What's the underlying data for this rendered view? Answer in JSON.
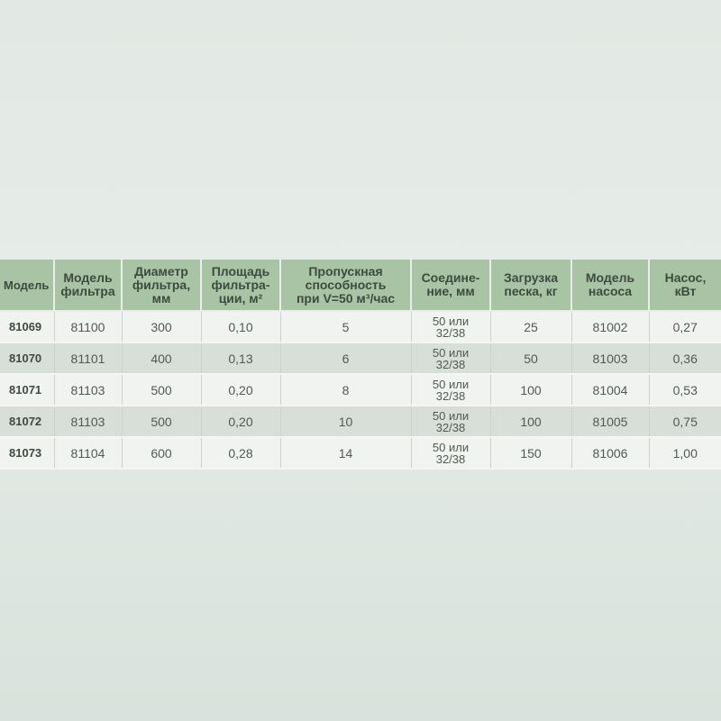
{
  "table": {
    "headers": [
      {
        "line1": "Модель",
        "line2": ""
      },
      {
        "line1": "Модель",
        "line2": "фильтра"
      },
      {
        "line1": "Диаметр",
        "line2": "фильтра,",
        "line3": "мм"
      },
      {
        "line1": "Площадь",
        "line2": "фильтра-",
        "line3": "ции, м²"
      },
      {
        "line1": "Пропускная",
        "line2": "способность",
        "line3": "при V=50 м³/час"
      },
      {
        "line1": "Соедине-",
        "line2": "ние, мм"
      },
      {
        "line1": "Загрузка",
        "line2": "песка, кг"
      },
      {
        "line1": "Модель",
        "line2": "насоса"
      },
      {
        "line1": "Насос,",
        "line2": "кВт"
      }
    ],
    "rows": [
      {
        "model": "81069",
        "filter": "81100",
        "diameter": "300",
        "area": "0,10",
        "throughput": "5",
        "conn1": "50 или",
        "conn2": "32/38",
        "sand": "25",
        "pump": "81002",
        "power": "0,27"
      },
      {
        "model": "81070",
        "filter": "81101",
        "diameter": "400",
        "area": "0,13",
        "throughput": "6",
        "conn1": "50 или",
        "conn2": "32/38",
        "sand": "50",
        "pump": "81003",
        "power": "0,36"
      },
      {
        "model": "81071",
        "filter": "81103",
        "diameter": "500",
        "area": "0,20",
        "throughput": "8",
        "conn1": "50 или",
        "conn2": "32/38",
        "sand": "100",
        "pump": "81004",
        "power": "0,53"
      },
      {
        "model": "81072",
        "filter": "81103",
        "diameter": "500",
        "area": "0,20",
        "throughput": "10",
        "conn1": "50 или",
        "conn2": "32/38",
        "sand": "100",
        "pump": "81005",
        "power": "0,75"
      },
      {
        "model": "81073",
        "filter": "81104",
        "diameter": "600",
        "area": "0,28",
        "throughput": "14",
        "conn1": "50 или",
        "conn2": "32/38",
        "sand": "150",
        "pump": "81006",
        "power": "1,00"
      }
    ]
  },
  "colors": {
    "header_bg": "#a8c4a4",
    "row_light": "#f1f3f0",
    "row_dark": "#d7dfd8",
    "page_bg": "#e4eae6"
  }
}
